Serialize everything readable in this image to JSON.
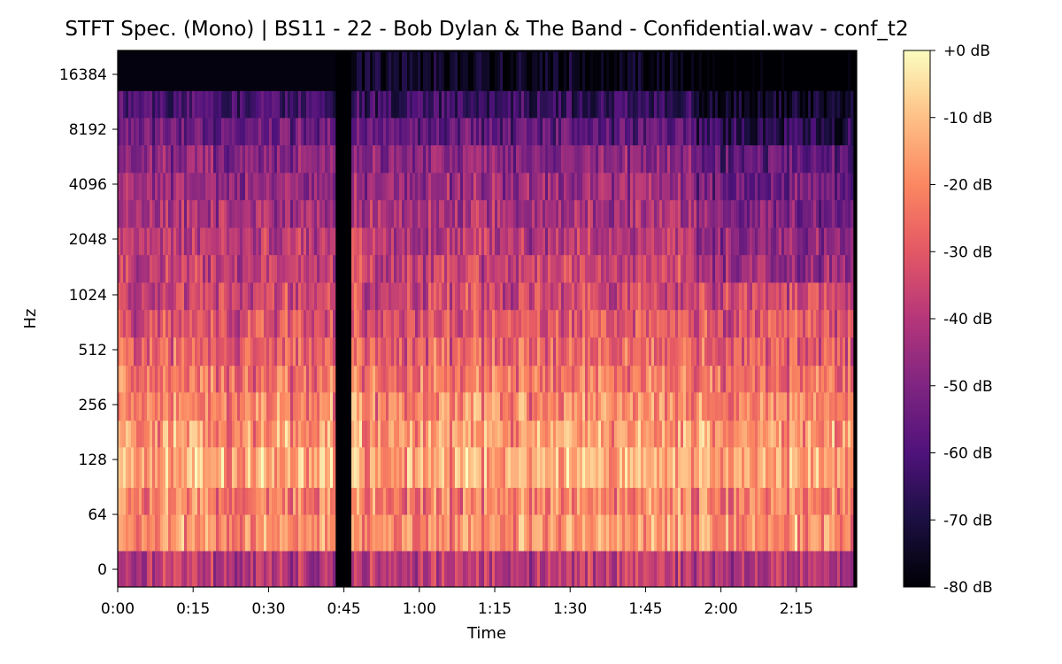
{
  "chart_data": {
    "type": "heatmap",
    "title": "STFT Spec. (Mono) | BS11 - 22 - Bob Dylan & The Band - Confidential.wav - conf_t2",
    "xlabel": "Time",
    "ylabel": "Hz",
    "x_ticks": [
      "0:00",
      "0:15",
      "0:30",
      "0:45",
      "1:00",
      "1:15",
      "1:30",
      "1:45",
      "2:00",
      "2:15"
    ],
    "x_tick_seconds": [
      0,
      15,
      30,
      45,
      60,
      75,
      90,
      105,
      120,
      135
    ],
    "xlim_seconds": [
      0,
      147
    ],
    "y_ticks": [
      "0",
      "64",
      "128",
      "256",
      "512",
      "1024",
      "2048",
      "4096",
      "8192",
      "16384"
    ],
    "y_scale": "log2 (symlog near 0)",
    "colormap": "magma",
    "colorbar": {
      "ticks": [
        "+0 dB",
        "-10 dB",
        "-20 dB",
        "-30 dB",
        "-40 dB",
        "-50 dB",
        "-60 dB",
        "-70 dB",
        "-80 dB"
      ],
      "range_db": [
        -80,
        0
      ]
    },
    "silence_gap_seconds": [
      43,
      46
    ],
    "high_freq_cutoff_hz_before_gap": 11000
  }
}
